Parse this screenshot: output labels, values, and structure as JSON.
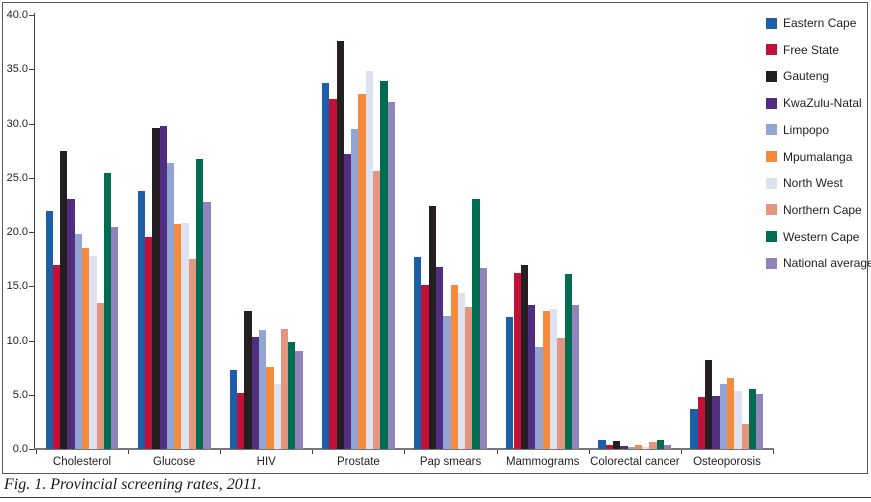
{
  "figure": {
    "caption": "Fig. 1. Provincial screening rates, 2011."
  },
  "chart_data": {
    "type": "bar",
    "title": "Provincial screening rates, 2011",
    "xlabel": "",
    "ylabel": "",
    "ylim": [
      0,
      40
    ],
    "ytick_step": 5,
    "ytick_labels": [
      "0.0",
      "5.0",
      "10.0",
      "15.0",
      "20.0",
      "25.0",
      "30.0",
      "35.0",
      "40.0"
    ],
    "grid": false,
    "legend_position": "right",
    "categories": [
      "Cholesterol",
      "Glucose",
      "HIV",
      "Prostate",
      "Pap smears",
      "Mammograms",
      "Colorectal cancer",
      "Osteoporosis"
    ],
    "series": [
      {
        "name": "Eastern Cape",
        "color": "#1a5fa8",
        "values": [
          21.9,
          23.8,
          7.3,
          33.7,
          17.7,
          12.2,
          0.8,
          3.7
        ]
      },
      {
        "name": "Free State",
        "color": "#c41039",
        "values": [
          17.0,
          19.5,
          5.2,
          32.3,
          15.1,
          16.2,
          0.4,
          4.8
        ]
      },
      {
        "name": "Gauteng",
        "color": "#231f20",
        "values": [
          27.5,
          29.6,
          12.7,
          37.6,
          22.4,
          17.0,
          0.7,
          8.2
        ]
      },
      {
        "name": "KwaZulu-Natal",
        "color": "#522e80",
        "values": [
          23.0,
          29.8,
          10.3,
          27.2,
          16.8,
          13.3,
          0.3,
          4.9
        ]
      },
      {
        "name": "Limpopo",
        "color": "#92a6d6",
        "values": [
          19.8,
          26.4,
          11.0,
          29.5,
          12.3,
          9.4,
          0.2,
          6.0
        ]
      },
      {
        "name": "Mpumalanga",
        "color": "#f58b3c",
        "values": [
          18.5,
          20.7,
          7.6,
          32.7,
          15.1,
          12.7,
          0.4,
          6.5
        ]
      },
      {
        "name": "North West",
        "color": "#dde1f0",
        "values": [
          17.8,
          20.8,
          6.0,
          34.8,
          14.4,
          12.9,
          0.2,
          5.3
        ]
      },
      {
        "name": "Northern Cape",
        "color": "#e5947e",
        "values": [
          13.5,
          17.5,
          11.1,
          25.6,
          13.1,
          10.2,
          0.6,
          2.3
        ]
      },
      {
        "name": "Western Cape",
        "color": "#016c4f",
        "values": [
          25.4,
          26.7,
          9.9,
          33.9,
          23.0,
          16.1,
          0.8,
          5.5
        ]
      },
      {
        "name": "National average",
        "color": "#9184bc",
        "values": [
          20.5,
          22.8,
          9.0,
          32.0,
          16.7,
          13.3,
          0.4,
          5.1
        ]
      }
    ]
  }
}
